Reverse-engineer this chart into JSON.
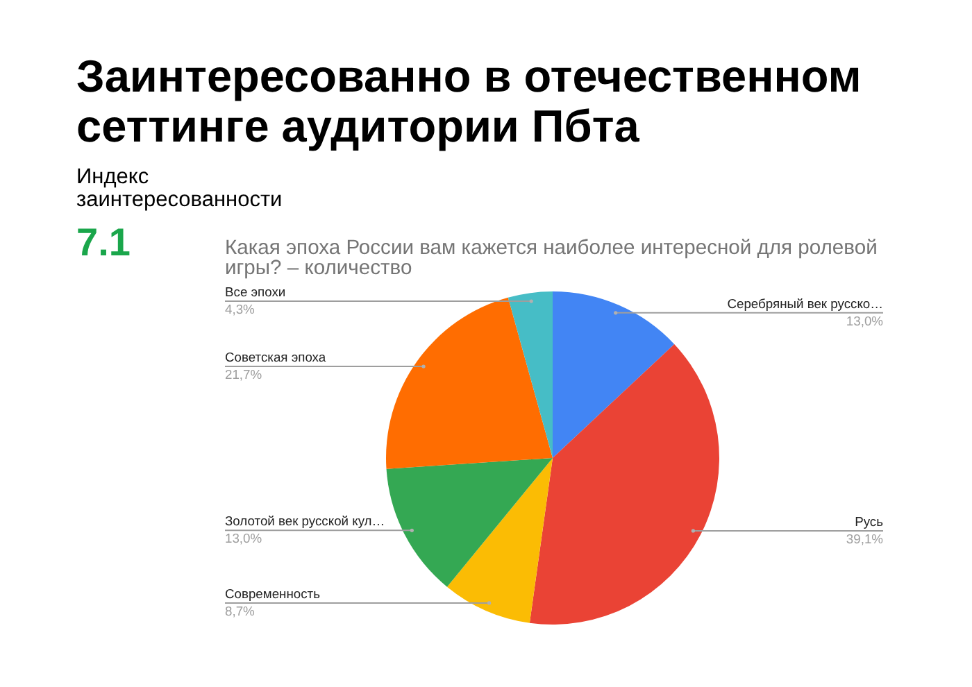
{
  "chart_data": {
    "type": "pie",
    "title": "Заинтересованно в отечественном сеттинге аудитории Пбта",
    "subtitle": "Какая эпоха России вам кажется наиболее интересной для ролевой игры? – количество",
    "annotations": [
      "Индекс заинтересованности",
      "7.1"
    ],
    "categories": [
      "Серебряный век русско…",
      "Русь",
      "Современность",
      "Золотой век русской кул…",
      "Советская эпоха",
      "Все эпохи"
    ],
    "values": [
      13.0,
      39.1,
      8.7,
      13.0,
      21.7,
      4.3
    ],
    "colors": [
      "#4285f4",
      "#ea4335",
      "#fbbc04",
      "#34a853",
      "#ff6d01",
      "#46bdc6"
    ],
    "value_labels": [
      "13,0%",
      "39,1%",
      "8,7%",
      "13,0%",
      "21,7%",
      "4,3%"
    ]
  }
}
